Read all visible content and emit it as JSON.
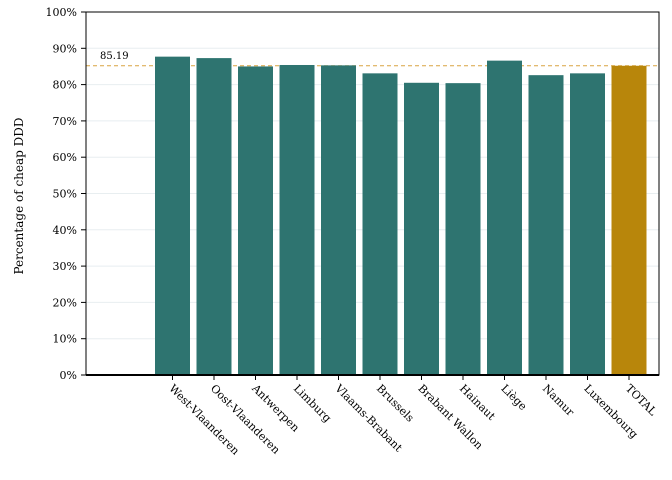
{
  "chart_data": {
    "type": "bar",
    "title": "",
    "xlabel": "",
    "ylabel": "Percentage of cheap DDD",
    "ylim": [
      0,
      100
    ],
    "yticks": [
      "0%",
      "10%",
      "20%",
      "30%",
      "40%",
      "50%",
      "60%",
      "70%",
      "80%",
      "90%",
      "100%"
    ],
    "categories": [
      "West-Vlaanderen",
      "Oost-Vlaanderen",
      "Antwerpen",
      "Limburg",
      "Vlaams-Brabant",
      "Brussels",
      "Brabant Wallon",
      "Hainaut",
      "Liège",
      "Namur",
      "Luxembourg",
      "TOTAL"
    ],
    "values": [
      87.7,
      87.3,
      85.0,
      85.4,
      85.3,
      83.1,
      80.5,
      80.4,
      86.6,
      82.6,
      83.1,
      85.19
    ],
    "reference_line": {
      "value": 85.19,
      "label": "85.19",
      "color": "#d9a441",
      "style": "dashed"
    },
    "grid": true,
    "colors": {
      "bar": "#2e7470",
      "total_bar": "#b8860b",
      "grid": "#e8eef0"
    }
  }
}
